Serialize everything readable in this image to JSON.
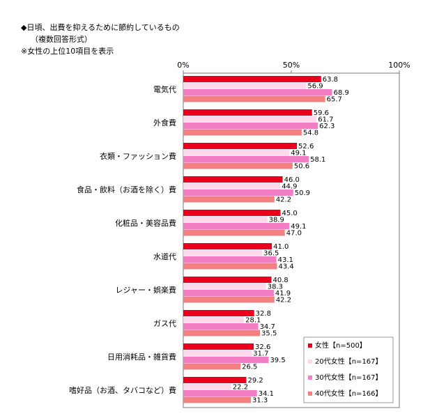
{
  "chart_data": {
    "type": "hbar",
    "title": "◆日頃、出費を抑えるために節約しているもの",
    "subtitle": "（複数回答形式）",
    "note": "※女性の上位10項目を表示",
    "categories": [
      "電気代",
      "外食費",
      "衣類・ファッション費",
      "食品・飲料（お酒を除く）費",
      "化粧品・美容品費",
      "水道代",
      "レジャー・娯楽費",
      "ガス代",
      "日用消耗品・雑貨費",
      "嗜好品（お酒、タバコなど）費"
    ],
    "series": [
      {
        "name": "女性【n=500】",
        "color": "#e8001c",
        "values": [
          63.8,
          59.6,
          52.6,
          46.0,
          45.0,
          41.0,
          40.8,
          32.8,
          32.6,
          29.2
        ],
        "value_labels": [
          "63.8",
          "59.6",
          "52.6",
          "46.0",
          "45.0",
          "41.0",
          "40.8",
          "32.8",
          "32.6",
          "29.2"
        ]
      },
      {
        "name": "20代女性【n=167】",
        "color": "#fcd8ea",
        "values": [
          56.9,
          61.7,
          49.1,
          44.9,
          38.9,
          36.5,
          38.3,
          28.1,
          31.7,
          22.2
        ],
        "value_labels": [
          "56.9",
          "61.7",
          "49.1",
          "44.9",
          "38.9",
          "36.5",
          "38.3",
          "28.1",
          "31.7",
          "22.2"
        ]
      },
      {
        "name": "30代女性【n=167】",
        "color": "#f27fc4",
        "values": [
          68.9,
          62.3,
          58.1,
          50.9,
          49.1,
          43.1,
          41.9,
          34.7,
          39.5,
          34.1
        ],
        "value_labels": [
          "68.9",
          "62.3",
          "58.1",
          "50.9",
          "49.1",
          "43.1",
          "41.9",
          "34.7",
          "39.5",
          "34.1"
        ]
      },
      {
        "name": "40代女性【n=166】",
        "color": "#f28080",
        "values": [
          65.7,
          54.8,
          50.6,
          42.2,
          47.0,
          43.4,
          42.2,
          35.5,
          26.5,
          31.3
        ],
        "value_labels": [
          "65.7",
          "54.8",
          "50.6",
          "42.2",
          "47.0",
          "43.4",
          "42.2",
          "35.5",
          "26.5",
          "31.3"
        ]
      }
    ],
    "xlim": [
      0,
      100
    ],
    "xticks": [
      {
        "value": 0,
        "label": "0%"
      },
      {
        "value": 50,
        "label": "50%"
      },
      {
        "value": 100,
        "label": "100%"
      }
    ],
    "legend": "lower-right"
  }
}
